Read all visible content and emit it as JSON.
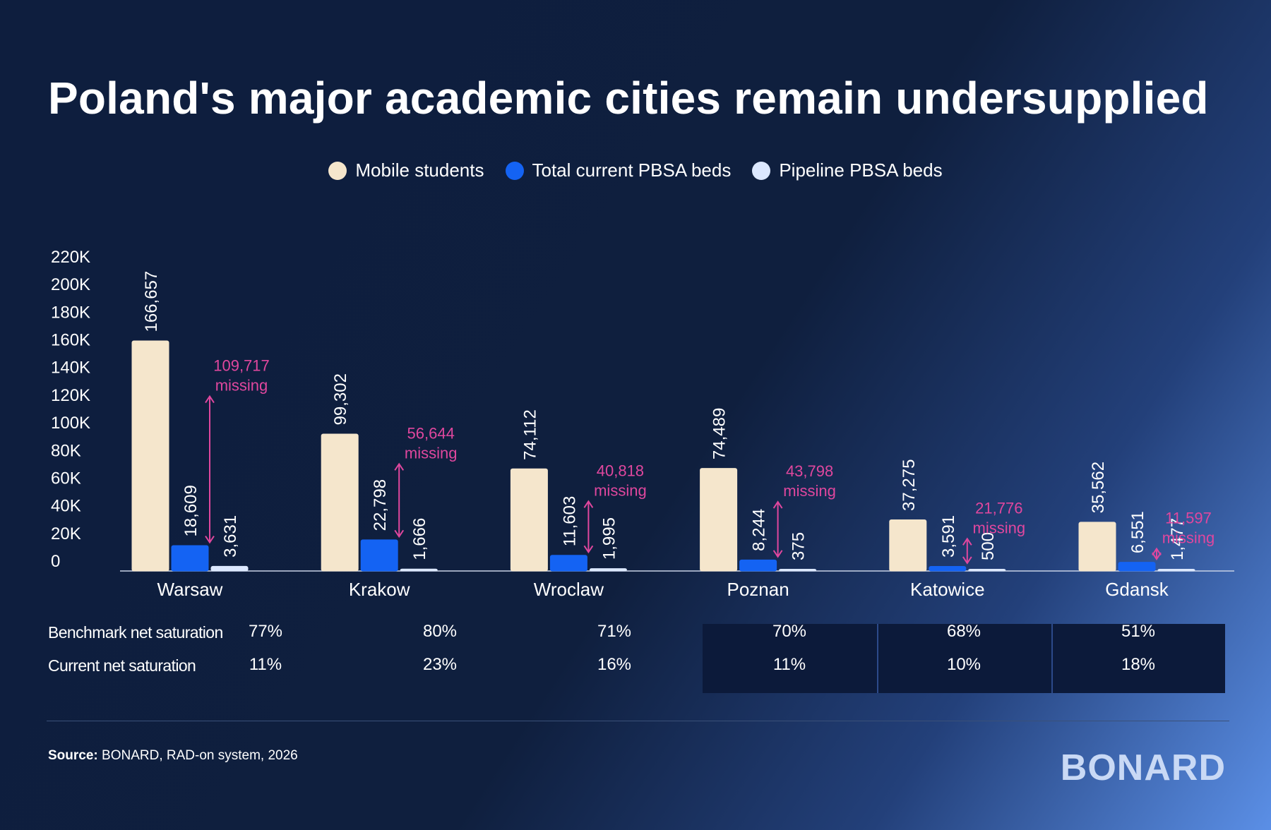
{
  "title": "Poland's major academic cities remain undersupplied",
  "legend": [
    {
      "label": "Mobile students",
      "color": "#f5e6cc"
    },
    {
      "label": "Total current PBSA beds",
      "color": "#1463f3"
    },
    {
      "label": "Pipeline PBSA beds",
      "color": "#dce8ff"
    }
  ],
  "chart_data": {
    "type": "bar",
    "categories": [
      "Warsaw",
      "Krakow",
      "Wroclaw",
      "Poznan",
      "Katowice",
      "Gdansk"
    ],
    "series": [
      {
        "name": "Mobile students",
        "values": [
          166657,
          99302,
          74112,
          74489,
          37275,
          35562
        ],
        "labels": [
          "166,657",
          "99,302",
          "74,112",
          "74,489",
          "37,275",
          "35,562"
        ]
      },
      {
        "name": "Total current PBSA beds",
        "values": [
          18609,
          22798,
          11603,
          8244,
          3591,
          6551
        ],
        "labels": [
          "18,609",
          "22,798",
          "11,603",
          "8,244",
          "3,591",
          "6,551"
        ]
      },
      {
        "name": "Pipeline PBSA beds",
        "values": [
          3631,
          1666,
          1995,
          375,
          500,
          1477
        ],
        "labels": [
          "3,631",
          "1,666",
          "1,995",
          "375",
          "500",
          "1,477"
        ]
      }
    ],
    "missing": [
      {
        "value": "109,717",
        "word": "missing",
        "from": 18609,
        "to": 128326
      },
      {
        "value": "56,644",
        "word": "missing",
        "from": 22798,
        "to": 79442
      },
      {
        "value": "40,818",
        "word": "missing",
        "from": 11603,
        "to": 52421
      },
      {
        "value": "43,798",
        "word": "missing",
        "from": 8244,
        "to": 52042
      },
      {
        "value": "21,776",
        "word": "missing",
        "from": 3591,
        "to": 25367
      },
      {
        "value": "11,597",
        "word": "missing",
        "from": 6551,
        "to": 18148
      }
    ],
    "yticks": [
      "0",
      "20K",
      "40K",
      "60K",
      "80K",
      "100K",
      "120K",
      "140K",
      "160K",
      "180K",
      "200K",
      "220K"
    ],
    "ylim": [
      0,
      220000
    ],
    "missing_color": "#e0479e",
    "xlabel": "",
    "ylabel": ""
  },
  "saturation": {
    "rows": [
      {
        "label": "Benchmark net saturation",
        "values": [
          "77%",
          "80%",
          "71%",
          "70%",
          "68%",
          "51%"
        ]
      },
      {
        "label": "Current net saturation",
        "values": [
          "11%",
          "23%",
          "16%",
          "11%",
          "10%",
          "18%"
        ]
      }
    ]
  },
  "source": {
    "bold": "Source:",
    "text": " BONARD, RAD-on system, 2026"
  },
  "brand": "BONARD"
}
